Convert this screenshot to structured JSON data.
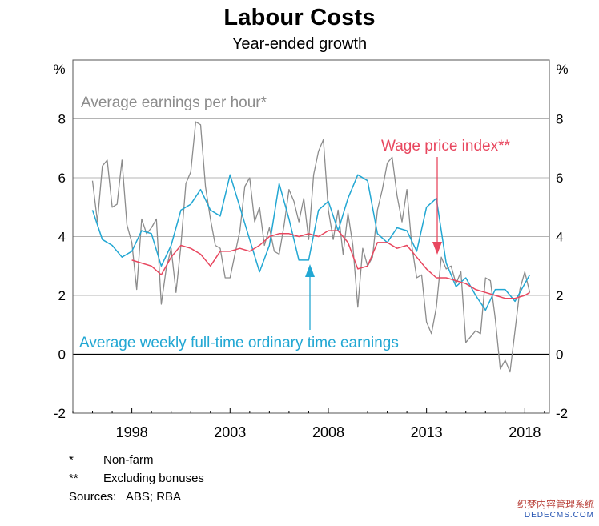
{
  "title": "Labour Costs",
  "subtitle": "Year-ended growth",
  "footnotes": [
    {
      "mark": "*",
      "text": "Non-farm"
    },
    {
      "mark": "**",
      "text": "Excluding bonuses"
    }
  ],
  "sources": "Sources:   ABS; RBA",
  "watermark": {
    "line1": "织梦内容管理系统",
    "line2": "DEDECMS.COM"
  },
  "chart_data": {
    "type": "line",
    "title": "Labour Costs",
    "subtitle": "Year-ended growth",
    "ylabel_left": "%",
    "ylabel_right": "%",
    "xlim": [
      1995.0,
      2019.25
    ],
    "ylim": [
      -2,
      10
    ],
    "x_ticks": [
      1998,
      2003,
      2008,
      2013,
      2018
    ],
    "x_tick_labels": [
      "1998",
      "2003",
      "2008",
      "2013",
      "2018"
    ],
    "y_ticks": [
      -2,
      0,
      2,
      4,
      6,
      8
    ],
    "y_tick_labels": [
      "-2",
      "0",
      "2",
      "4",
      "6",
      "8"
    ],
    "grid": true,
    "colors": {
      "aehr": "#8c8c8c",
      "wpi": "#e8475f",
      "awote": "#22a7d3",
      "grid": "#b4b4b4",
      "frame": "#555555"
    },
    "annotations": [
      {
        "text": "Average earnings per hour*",
        "series": "aehr"
      },
      {
        "text": "Wage price index**",
        "series": "wpi"
      },
      {
        "text": "Average weekly full-time ordinary time earnings",
        "series": "awote"
      }
    ],
    "series": [
      {
        "key": "aehr",
        "x": [
          1996.0,
          1996.25,
          1996.5,
          1996.75,
          1997.0,
          1997.25,
          1997.5,
          1997.75,
          1998.0,
          1998.25,
          1998.5,
          1998.75,
          1999.0,
          1999.25,
          1999.5,
          1999.75,
          2000.0,
          2000.25,
          2000.5,
          2000.75,
          2001.0,
          2001.25,
          2001.5,
          2001.75,
          2002.0,
          2002.25,
          2002.5,
          2002.75,
          2003.0,
          2003.25,
          2003.5,
          2003.75,
          2004.0,
          2004.25,
          2004.5,
          2004.75,
          2005.0,
          2005.25,
          2005.5,
          2005.75,
          2006.0,
          2006.25,
          2006.5,
          2006.75,
          2007.0,
          2007.25,
          2007.5,
          2007.75,
          2008.0,
          2008.25,
          2008.5,
          2008.75,
          2009.0,
          2009.25,
          2009.5,
          2009.75,
          2010.0,
          2010.25,
          2010.5,
          2010.75,
          2011.0,
          2011.25,
          2011.5,
          2011.75,
          2012.0,
          2012.25,
          2012.5,
          2012.75,
          2013.0,
          2013.25,
          2013.5,
          2013.75,
          2014.0,
          2014.25,
          2014.5,
          2014.75,
          2015.0,
          2015.25,
          2015.5,
          2015.75,
          2016.0,
          2016.25,
          2016.5,
          2016.75,
          2017.0,
          2017.25,
          2017.5,
          2017.75,
          2018.0,
          2018.25
        ],
        "y": [
          5.9,
          4.5,
          6.4,
          6.6,
          5.0,
          5.1,
          6.6,
          4.4,
          3.8,
          2.2,
          4.6,
          4.1,
          4.3,
          4.6,
          1.7,
          2.9,
          3.6,
          2.1,
          3.7,
          5.8,
          6.2,
          7.9,
          7.8,
          5.7,
          4.6,
          3.7,
          3.6,
          2.6,
          2.6,
          3.4,
          4.2,
          5.7,
          6.0,
          4.5,
          5.0,
          3.7,
          4.3,
          3.5,
          3.4,
          4.4,
          5.6,
          5.2,
          4.5,
          5.3,
          3.9,
          6.1,
          6.9,
          7.3,
          4.9,
          3.9,
          4.9,
          3.4,
          4.8,
          3.7,
          1.6,
          3.6,
          3.0,
          3.3,
          4.9,
          5.6,
          6.5,
          6.7,
          5.4,
          4.5,
          5.6,
          3.7,
          2.6,
          2.7,
          1.1,
          0.7,
          1.6,
          3.3,
          2.9,
          3.0,
          2.4,
          2.8,
          0.4,
          0.6,
          0.8,
          0.7,
          2.6,
          2.5,
          1.2,
          -0.5,
          -0.2,
          -0.6,
          0.8,
          2.2,
          2.8,
          2.1
        ]
      },
      {
        "key": "awote",
        "x": [
          1996.0,
          1996.5,
          1997.0,
          1997.5,
          1998.0,
          1998.5,
          1999.0,
          1999.5,
          2000.0,
          2000.5,
          2001.0,
          2001.5,
          2002.0,
          2002.5,
          2003.0,
          2003.5,
          2004.0,
          2004.5,
          2005.0,
          2005.5,
          2006.0,
          2006.5,
          2007.0,
          2007.5,
          2008.0,
          2008.5,
          2009.0,
          2009.5,
          2010.0,
          2010.5,
          2011.0,
          2011.5,
          2012.0,
          2012.5,
          2013.0,
          2013.5,
          2014.0,
          2014.5,
          2015.0,
          2015.5,
          2016.0,
          2016.5,
          2017.0,
          2017.5,
          2018.0,
          2018.25
        ],
        "y": [
          4.9,
          3.9,
          3.7,
          3.3,
          3.5,
          4.2,
          4.1,
          3.0,
          3.7,
          4.9,
          5.1,
          5.6,
          4.9,
          4.7,
          6.1,
          5.0,
          3.9,
          2.8,
          3.7,
          5.8,
          4.6,
          3.2,
          3.2,
          4.9,
          5.2,
          4.2,
          5.3,
          6.1,
          5.9,
          4.1,
          3.8,
          4.3,
          4.2,
          3.5,
          5.0,
          5.3,
          3.1,
          2.3,
          2.6,
          2.0,
          1.5,
          2.2,
          2.2,
          1.8,
          2.4,
          2.7
        ]
      },
      {
        "key": "wpi",
        "x": [
          1998.0,
          1998.5,
          1999.0,
          1999.5,
          2000.0,
          2000.5,
          2001.0,
          2001.5,
          2002.0,
          2002.5,
          2003.0,
          2003.5,
          2004.0,
          2004.5,
          2005.0,
          2005.5,
          2006.0,
          2006.5,
          2007.0,
          2007.5,
          2008.0,
          2008.5,
          2009.0,
          2009.5,
          2010.0,
          2010.5,
          2011.0,
          2011.5,
          2012.0,
          2012.5,
          2013.0,
          2013.5,
          2014.0,
          2014.5,
          2015.0,
          2015.5,
          2016.0,
          2016.5,
          2017.0,
          2017.5,
          2018.0,
          2018.25
        ],
        "y": [
          3.2,
          3.1,
          3.0,
          2.7,
          3.3,
          3.7,
          3.6,
          3.4,
          3.0,
          3.5,
          3.5,
          3.6,
          3.5,
          3.7,
          4.0,
          4.1,
          4.1,
          4.0,
          4.1,
          4.0,
          4.2,
          4.2,
          3.8,
          2.9,
          3.0,
          3.8,
          3.8,
          3.6,
          3.7,
          3.3,
          2.9,
          2.6,
          2.6,
          2.5,
          2.4,
          2.2,
          2.1,
          2.0,
          1.9,
          1.9,
          2.0,
          2.1
        ]
      }
    ]
  }
}
